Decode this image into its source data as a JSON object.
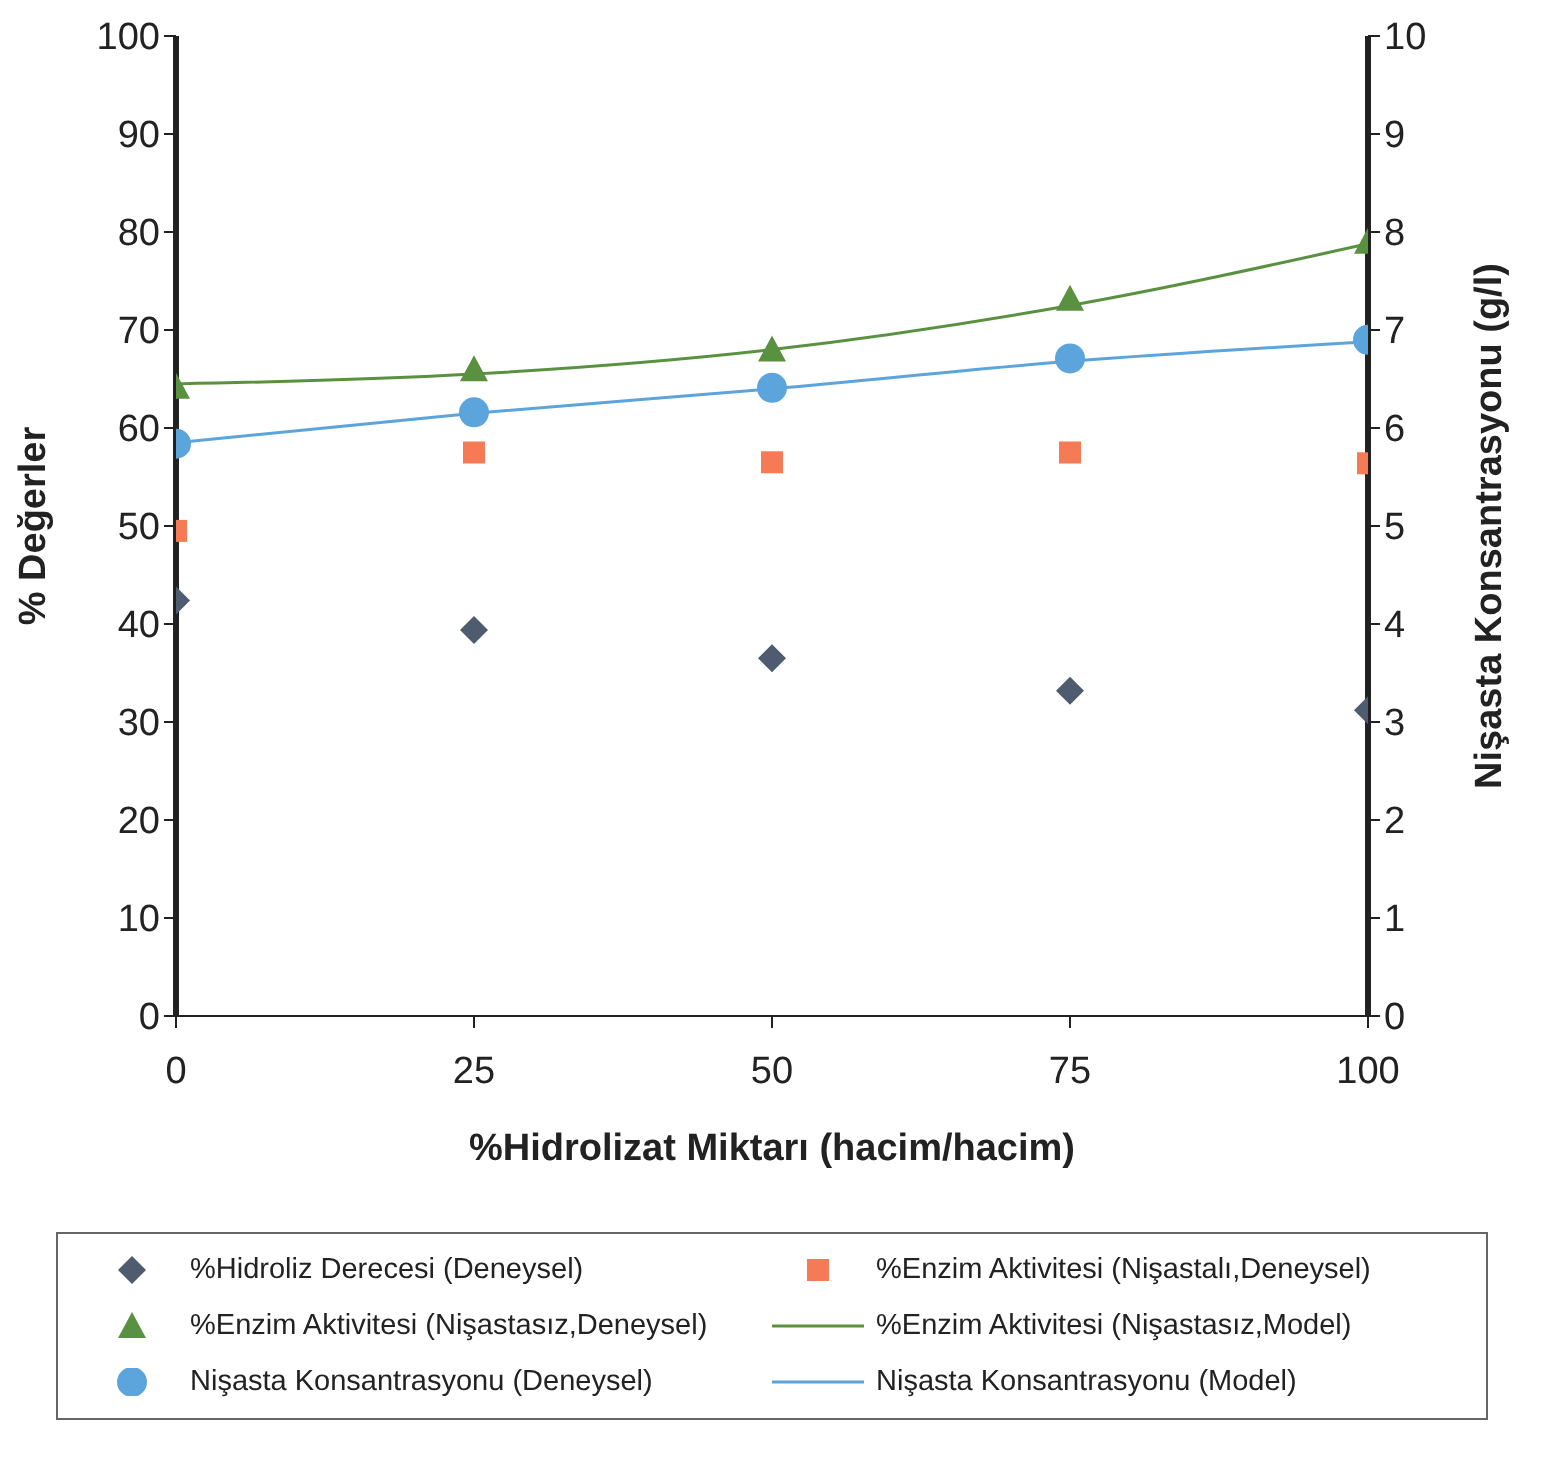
{
  "chart_data": {
    "type": "scatter",
    "xlabel": "%Hidrolizat Miktarı (hacim/hacim)",
    "ylabel": "% Değerler",
    "y2label": "Nişasta Konsantrasyonu (g/l)",
    "x": [
      0,
      25,
      50,
      75,
      100
    ],
    "xlim": [
      0,
      100
    ],
    "xticks": [
      0,
      25,
      50,
      75,
      100
    ],
    "ylim": [
      0,
      100
    ],
    "yticks": [
      0,
      10,
      20,
      30,
      40,
      50,
      60,
      70,
      80,
      90,
      100
    ],
    "y2lim": [
      0,
      10
    ],
    "y2ticks": [
      0,
      1,
      2,
      3,
      4,
      5,
      6,
      7,
      8,
      9,
      10
    ],
    "grid": false,
    "legend": "bottom",
    "series": [
      {
        "name": "%Hidroliz Derecesi (Deneysel)",
        "marker": "diamond",
        "color": "#4f5b6e",
        "values": [
          42.4,
          39.4,
          36.5,
          33.2,
          31.2
        ]
      },
      {
        "name": "%Enzim Aktivitesi (Nişastalı,Deneysel)",
        "marker": "square",
        "color": "#f47b56",
        "values": [
          49.5,
          57.5,
          56.5,
          57.5,
          56.4
        ]
      },
      {
        "name": "%Enzim Aktivitesi (Nişastasız,Deneysel)",
        "marker": "triangle",
        "color": "#5a9140",
        "values": [
          64.2,
          66.0,
          68.0,
          73.2,
          79.0
        ]
      },
      {
        "name": "%Enzim Aktivitesi (Nişastasız,Model)",
        "type": "line",
        "marker": "none",
        "color": "#5a9140",
        "values": [
          64.5,
          65.5,
          68.0,
          72.5,
          78.8
        ]
      },
      {
        "name": "Nişasta Konsantrasyonu (Deneysel)",
        "marker": "circle",
        "color": "#5ba4dc",
        "axis": "y2",
        "values": [
          5.84,
          6.16,
          6.41,
          6.71,
          6.9
        ]
      },
      {
        "name": "Nişasta Konsantrasyonu (Model)",
        "type": "line",
        "marker": "none",
        "color": "#5ba4dc",
        "axis": "y2",
        "values": [
          5.85,
          6.15,
          6.4,
          6.68,
          6.88
        ]
      }
    ]
  }
}
